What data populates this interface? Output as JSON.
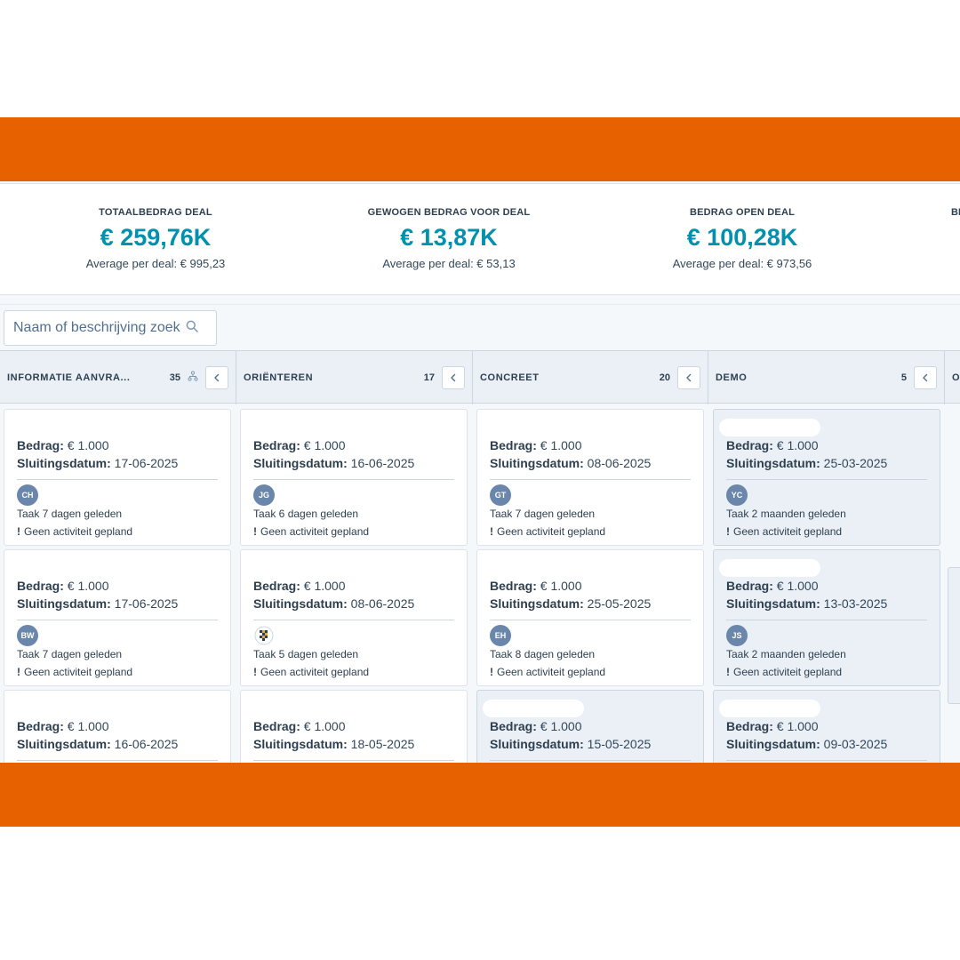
{
  "summary": {
    "metrics": [
      {
        "label": "TOTAALBEDRAG DEAL",
        "value": "€ 259,76K",
        "avg": "Average per deal: € 995,23"
      },
      {
        "label": "GEWOGEN BEDRAG VOOR DEAL",
        "value": "€ 13,87K",
        "avg": "Average per deal: € 53,13"
      },
      {
        "label": "BEDRAG OPEN DEAL",
        "value": "€ 100,28K",
        "avg": "Average per deal: € 973,56"
      }
    ],
    "partial_label": "BI"
  },
  "search": {
    "placeholder": "Naam of beschrijving zoeken"
  },
  "columns": [
    {
      "name": "INFORMATIE AANVRA...",
      "count": "35"
    },
    {
      "name": "ORIËNTEREN",
      "count": "17"
    },
    {
      "name": "CONCREET",
      "count": "20"
    },
    {
      "name": "DEMO",
      "count": "5"
    },
    {
      "name": "O",
      "count": ""
    }
  ],
  "card_labels": {
    "amount": "Bedrag:",
    "close": "Sluitingsdatum:",
    "no_activity": "Geen activiteit gepland",
    "warn": "!"
  },
  "cards": [
    [
      {
        "amount": "€ 1.000",
        "close": "17-06-2025",
        "owner": "CH",
        "task": "Taak 7 dagen geleden"
      },
      {
        "amount": "€ 1.000",
        "close": "17-06-2025",
        "owner": "BW",
        "task": "Taak 7 dagen geleden"
      },
      {
        "amount": "€ 1.000",
        "close": "16-06-2025"
      }
    ],
    [
      {
        "amount": "€ 1.000",
        "close": "16-06-2025",
        "owner": "JG",
        "task": "Taak 6 dagen geleden"
      },
      {
        "amount": "€ 1.000",
        "close": "08-06-2025",
        "owner": "",
        "task": "Taak 5 dagen geleden"
      },
      {
        "amount": "€ 1.000",
        "close": "18-05-2025"
      }
    ],
    [
      {
        "amount": "€ 1.000",
        "close": "08-06-2025",
        "owner": "GT",
        "task": "Taak 7 dagen geleden"
      },
      {
        "amount": "€ 1.000",
        "close": "25-05-2025",
        "owner": "EH",
        "task": "Taak 8 dagen geleden"
      },
      {
        "amount": "€ 1.000",
        "close": "15-05-2025"
      }
    ],
    [
      {
        "amount": "€ 1.000",
        "close": "25-03-2025",
        "owner": "YC",
        "task": "Taak 2 maanden geleden"
      },
      {
        "amount": "€ 1.000",
        "close": "13-03-2025",
        "owner": "JS",
        "task": "Taak 2 maanden geleden"
      },
      {
        "amount": "€ 1.000",
        "close": "09-03-2025"
      }
    ]
  ],
  "colors": {
    "accent_band": "#e86100",
    "metric_value": "#0091ae",
    "avatar": "#6a87ab",
    "card_highlight": "#eaf0f6"
  }
}
